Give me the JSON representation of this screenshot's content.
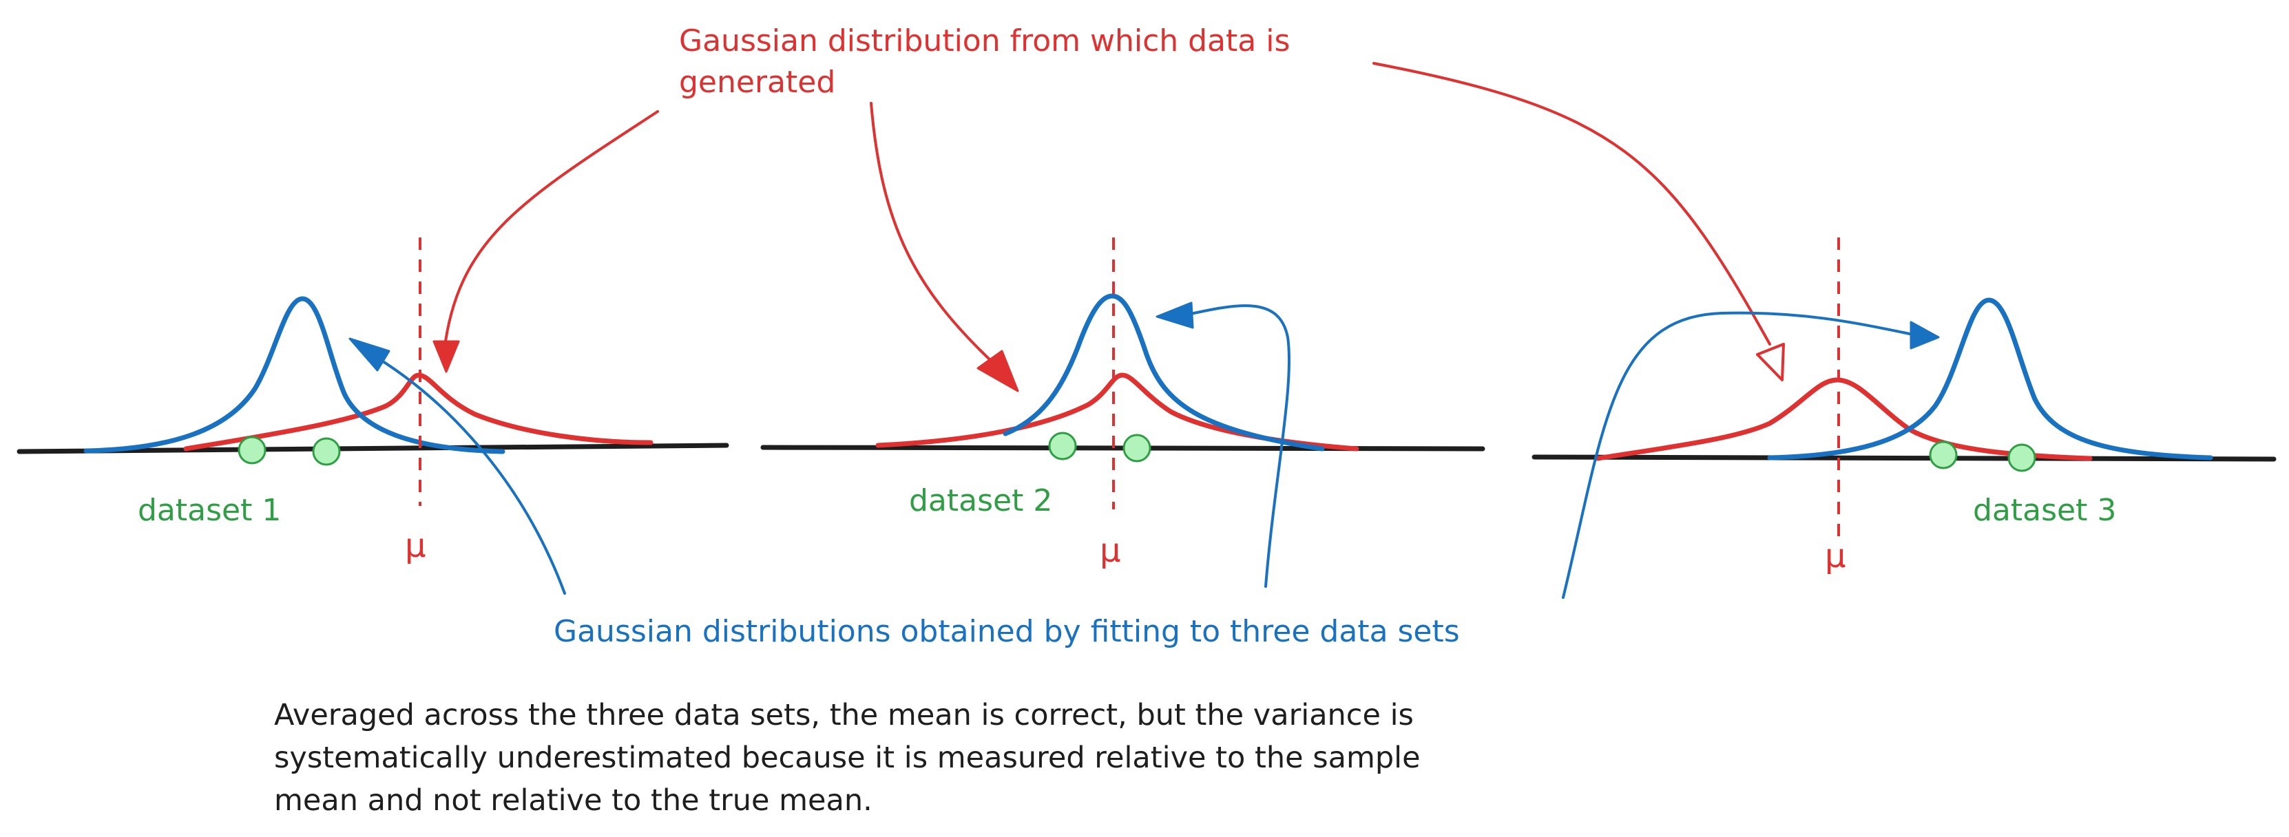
{
  "colors": {
    "true_distribution": "#e03131",
    "fitted_distribution": "#1971c2",
    "data_points": "#b2f2bb",
    "data_point_outline": "#2f9e44",
    "axis": "#1e1e1e"
  },
  "labels": {
    "true_distribution": [
      "Gaussian distribution from which data is",
      "generated"
    ],
    "fitted_distributions": "Gaussian distributions obtained by fitting to three data sets",
    "mean_symbol": "μ",
    "caption": [
      "Averaged across the three data sets, the mean is correct, but the variance is",
      "systematically underestimated because it is measured relative to the sample",
      "mean and not relative to the true mean."
    ]
  },
  "datasets": [
    {
      "label": "dataset 1",
      "points": 2
    },
    {
      "label": "dataset 2",
      "points": 2
    },
    {
      "label": "dataset 3",
      "points": 2
    }
  ]
}
